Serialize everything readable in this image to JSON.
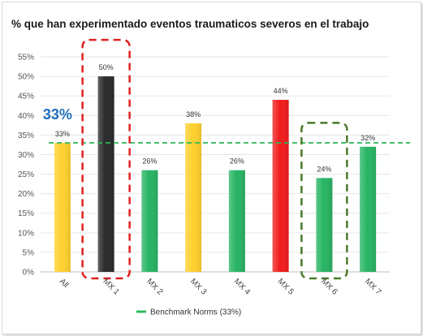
{
  "chart_data": {
    "type": "bar",
    "title": "% que han experimentado eventos traumaticos severos en el trabajo",
    "categories": [
      "All",
      "MX 1",
      "MX 2",
      "MX 3",
      "MX 4",
      "MX 5",
      "MX 6",
      "MX 7"
    ],
    "values": [
      33,
      50,
      26,
      38,
      26,
      44,
      24,
      32
    ],
    "value_labels": [
      "33%",
      "50%",
      "26%",
      "38%",
      "26%",
      "44%",
      "24%",
      "32%"
    ],
    "bar_colors": [
      "#ffd02e",
      "#2a2a2a",
      "#27b463",
      "#ffd02e",
      "#27b463",
      "#f21c1c",
      "#27b463",
      "#27b463"
    ],
    "ylim": [
      0,
      55
    ],
    "yticks": [
      0,
      5,
      10,
      15,
      20,
      25,
      30,
      35,
      40,
      45,
      50,
      55
    ],
    "ytick_labels": [
      "0%",
      "5%",
      "10%",
      "15%",
      "20%",
      "25%",
      "30%",
      "35%",
      "40%",
      "45%",
      "50%",
      "55%"
    ],
    "grid": true,
    "benchmark": {
      "value": 33,
      "label": "Benchmark Norms (33%)",
      "color": "#2db85c"
    },
    "annotation": {
      "text": "33%",
      "color": "#1f6fbf"
    },
    "highlight_boxes": [
      {
        "category": "MX 1",
        "color": "#e02020"
      },
      {
        "category": "MX 6",
        "color": "#4a7a2a"
      }
    ],
    "legend_position": "bottom"
  }
}
